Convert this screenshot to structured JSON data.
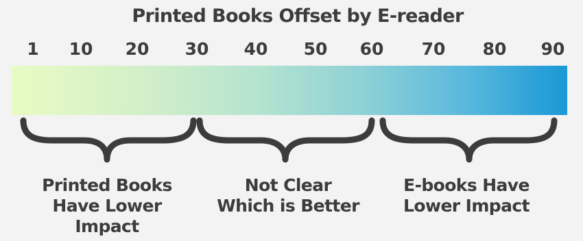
{
  "title": "Printed Books Offset by E-reader",
  "scale": {
    "ticks": [
      "1",
      "10",
      "20",
      "30",
      "40",
      "50",
      "60",
      "70",
      "80",
      "90"
    ],
    "gradient_start_color": "#e8fbc4",
    "gradient_end_color": "#1a98d6"
  },
  "ranges": [
    {
      "from": 1,
      "to": 30,
      "label_lines": [
        "Printed Books",
        "Have Lower",
        "Impact"
      ]
    },
    {
      "from": 30,
      "to": 60,
      "label_lines": [
        "Not Clear",
        "Which is Better"
      ]
    },
    {
      "from": 60,
      "to": 90,
      "label_lines": [
        "E-books Have",
        "Lower Impact"
      ]
    }
  ],
  "colors": {
    "text": "#3c3c3c",
    "brace": "#3c3c3c",
    "background": "#f3f3f3"
  }
}
